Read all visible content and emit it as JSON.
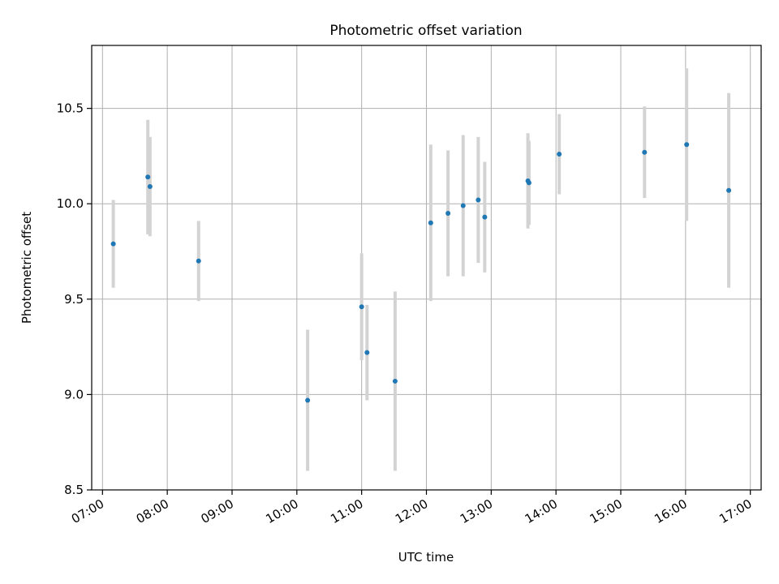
{
  "chart_data": {
    "type": "scatter",
    "title": "Photometric offset variation",
    "xlabel": "UTC time",
    "ylabel": "Photometric offset",
    "xlim": [
      "06:50",
      "17:10"
    ],
    "ylim": [
      8.5,
      10.83
    ],
    "x_ticks": [
      "07:00",
      "08:00",
      "09:00",
      "10:00",
      "11:00",
      "12:00",
      "13:00",
      "14:00",
      "15:00",
      "16:00",
      "17:00"
    ],
    "y_ticks": [
      "8.5",
      "9.0",
      "9.5",
      "10.0",
      "10.5"
    ],
    "grid": true,
    "colors": {
      "point": "#1f77b4",
      "errorbar": "#d3d3d3",
      "grid": "#b0b0b0"
    },
    "points": [
      {
        "time": "07:10",
        "y": 9.79,
        "err": 0.23
      },
      {
        "time": "07:42",
        "y": 10.14,
        "err": 0.3
      },
      {
        "time": "07:44",
        "y": 10.09,
        "err": 0.26
      },
      {
        "time": "08:29",
        "y": 9.7,
        "err": 0.21
      },
      {
        "time": "10:10",
        "y": 8.97,
        "err": 0.37
      },
      {
        "time": "11:00",
        "y": 9.46,
        "err": 0.28
      },
      {
        "time": "11:05",
        "y": 9.22,
        "err": 0.25
      },
      {
        "time": "11:31",
        "y": 9.07,
        "err": 0.47
      },
      {
        "time": "12:04",
        "y": 9.9,
        "err": 0.41
      },
      {
        "time": "12:20",
        "y": 9.95,
        "err": 0.33
      },
      {
        "time": "12:34",
        "y": 9.99,
        "err": 0.37
      },
      {
        "time": "12:48",
        "y": 10.02,
        "err": 0.33
      },
      {
        "time": "12:54",
        "y": 9.93,
        "err": 0.29
      },
      {
        "time": "13:34",
        "y": 10.12,
        "err": 0.25
      },
      {
        "time": "13:35",
        "y": 10.11,
        "err": 0.22
      },
      {
        "time": "14:03",
        "y": 10.26,
        "err": 0.21
      },
      {
        "time": "15:22",
        "y": 10.27,
        "err": 0.24
      },
      {
        "time": "16:01",
        "y": 10.31,
        "err": 0.4
      },
      {
        "time": "16:40",
        "y": 10.07,
        "err": 0.51
      }
    ]
  }
}
